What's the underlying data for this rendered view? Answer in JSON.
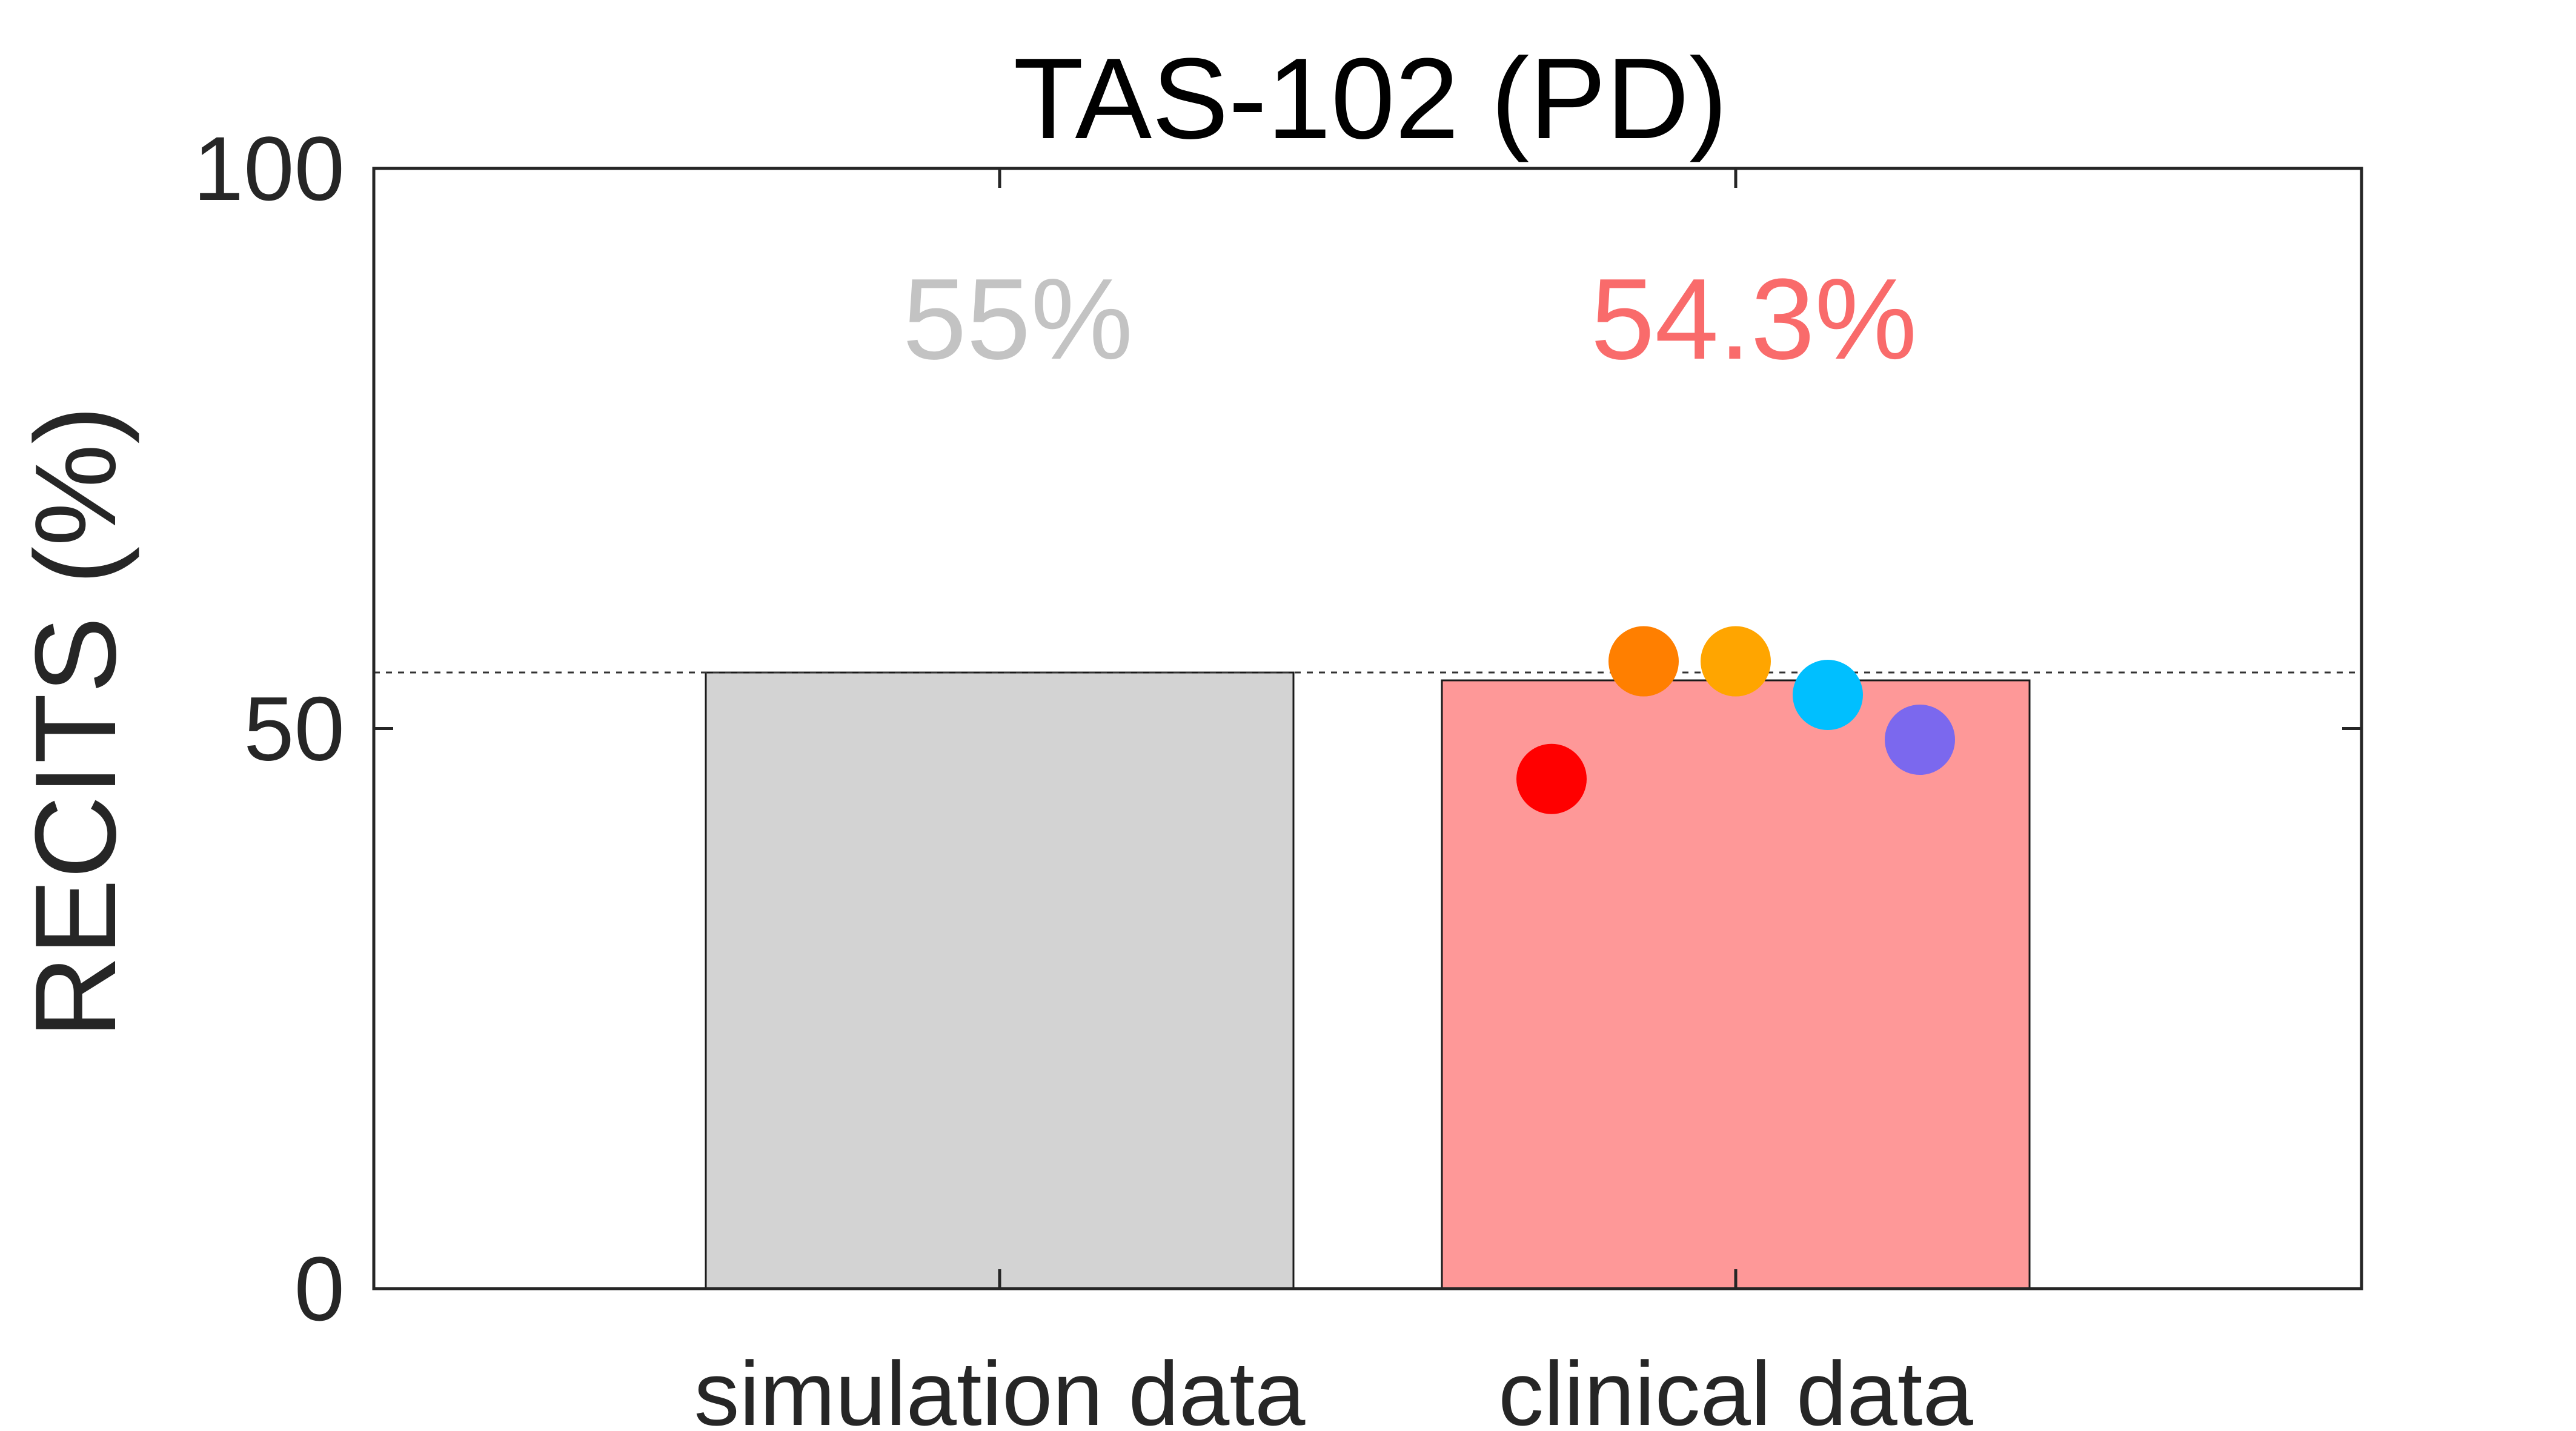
{
  "chart_data": {
    "type": "bar",
    "title": "TAS-102 (PD)",
    "xlabel": "",
    "ylabel": "RECITS (%)",
    "ylim": [
      0,
      100
    ],
    "yticks": [
      0,
      50,
      100
    ],
    "ytick_labels": [
      "0",
      "50",
      "100"
    ],
    "categories": [
      "simulation data",
      "clinical data"
    ],
    "values": [
      55,
      54.3
    ],
    "bar_colors": [
      "#d3d3d3",
      "#fe9898"
    ],
    "value_labels": [
      {
        "text": "55%",
        "color": "#c3c3c3"
      },
      {
        "text": "54.3%",
        "color": "#f96b6b"
      }
    ],
    "reference_line": {
      "y": 55,
      "style": "dashed"
    },
    "points": {
      "category": "clinical data",
      "values": [
        45.5,
        56,
        56,
        53,
        49
      ],
      "colors": [
        "#ff0000",
        "#ff7f00",
        "#ffa500",
        "#00bfff",
        "#7b68ee"
      ]
    },
    "grid": false,
    "legend": "none"
  }
}
